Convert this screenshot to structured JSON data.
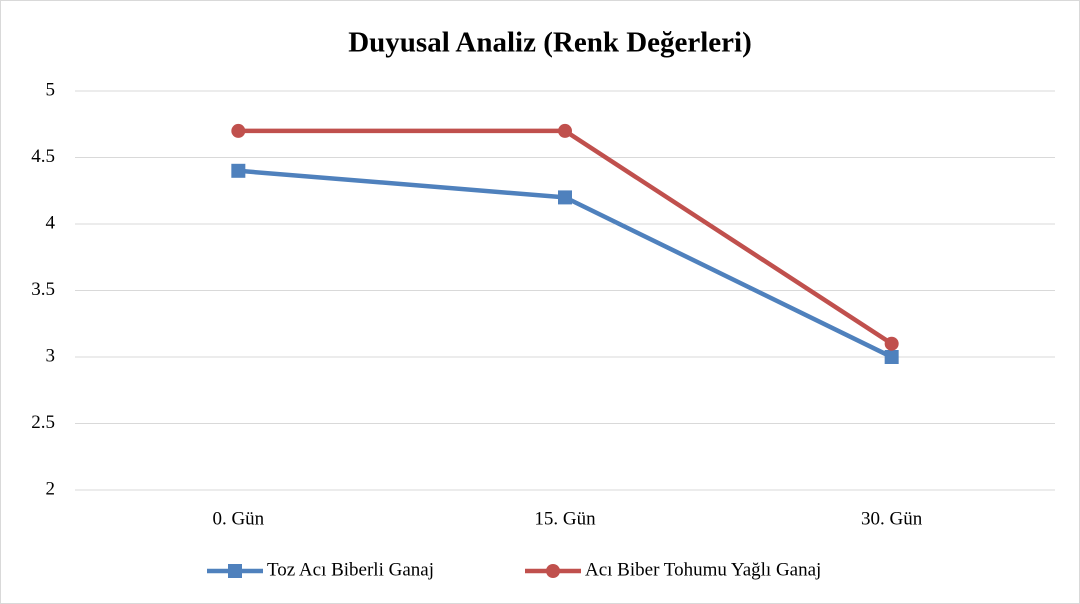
{
  "chart_data": {
    "type": "line",
    "title": "Duyusal Analiz (Renk Değerleri)",
    "categories": [
      "0. Gün",
      "15. Gün",
      "30. Gün"
    ],
    "series": [
      {
        "name": "Toz Acı Biberli Ganaj",
        "color": "#4f81bd",
        "marker": "square",
        "values": [
          4.4,
          4.2,
          3
        ]
      },
      {
        "name": "Acı Biber Tohumu Yağlı Ganaj",
        "color": "#c0504d",
        "marker": "circle",
        "values": [
          4.7,
          4.7,
          3.1
        ]
      }
    ],
    "ylim": [
      2,
      5
    ],
    "yticks": [
      2,
      2.5,
      3,
      3.5,
      4,
      4.5,
      5
    ],
    "grid": true,
    "legend": "bottom"
  }
}
